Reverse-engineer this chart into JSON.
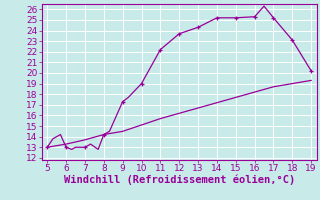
{
  "xlabel": "Windchill (Refroidissement éolien,°C)",
  "bg_color": "#c8eae8",
  "line_color": "#990099",
  "xlim": [
    5,
    19
  ],
  "ylim": [
    12,
    26
  ],
  "xticks": [
    5,
    6,
    7,
    8,
    9,
    10,
    11,
    12,
    13,
    14,
    15,
    16,
    17,
    18,
    19
  ],
  "yticks": [
    12,
    13,
    14,
    15,
    16,
    17,
    18,
    19,
    20,
    21,
    22,
    23,
    24,
    25,
    26
  ],
  "curve1_x": [
    5,
    5.3,
    5.7,
    6,
    6.3,
    6.5,
    7,
    7.3,
    7.7,
    8,
    8.3,
    9,
    9.3,
    10,
    11,
    12,
    13,
    14,
    15,
    16,
    16.5,
    17,
    18,
    19
  ],
  "curve1_y": [
    13,
    13.8,
    14.2,
    13,
    12.8,
    13,
    13,
    13.3,
    12.8,
    14.2,
    14.5,
    17.3,
    17.7,
    19.0,
    22.2,
    23.7,
    24.3,
    25.2,
    25.2,
    25.3,
    26.3,
    25.2,
    23.1,
    20.2
  ],
  "curve2_x": [
    5,
    6,
    7,
    8,
    9,
    10,
    11,
    12,
    13,
    14,
    15,
    16,
    17,
    18,
    19
  ],
  "curve2_y": [
    13.0,
    13.3,
    13.7,
    14.2,
    14.5,
    15.1,
    15.7,
    16.2,
    16.7,
    17.2,
    17.7,
    18.2,
    18.7,
    19.0,
    19.3
  ],
  "marker1_x": [
    5,
    6,
    7,
    8,
    9,
    10,
    11,
    12,
    13,
    14,
    15,
    16,
    17,
    18,
    19
  ],
  "marker1_y": [
    13.0,
    13.0,
    13.0,
    14.2,
    17.3,
    19.0,
    22.2,
    23.7,
    24.3,
    25.2,
    25.2,
    25.3,
    25.2,
    23.1,
    20.2
  ],
  "font_size_label": 7.5,
  "tick_font_size": 6.5
}
